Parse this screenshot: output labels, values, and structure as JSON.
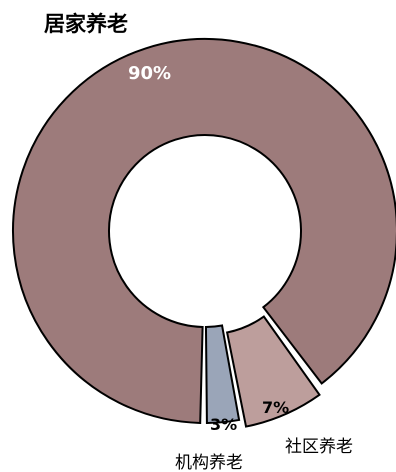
{
  "chart_data": {
    "type": "pie",
    "donut": true,
    "slices": [
      {
        "label": "居家养老",
        "value": 90,
        "pct_label": "90%",
        "color": "#9d7b7b"
      },
      {
        "label": "社区养老",
        "value": 7,
        "pct_label": "7%",
        "color": "#bd9e9c"
      },
      {
        "label": "机构养老",
        "value": 3,
        "pct_label": "3%",
        "color": "#9aa5b8"
      }
    ],
    "edge_color": "#000000",
    "legend": "none"
  }
}
